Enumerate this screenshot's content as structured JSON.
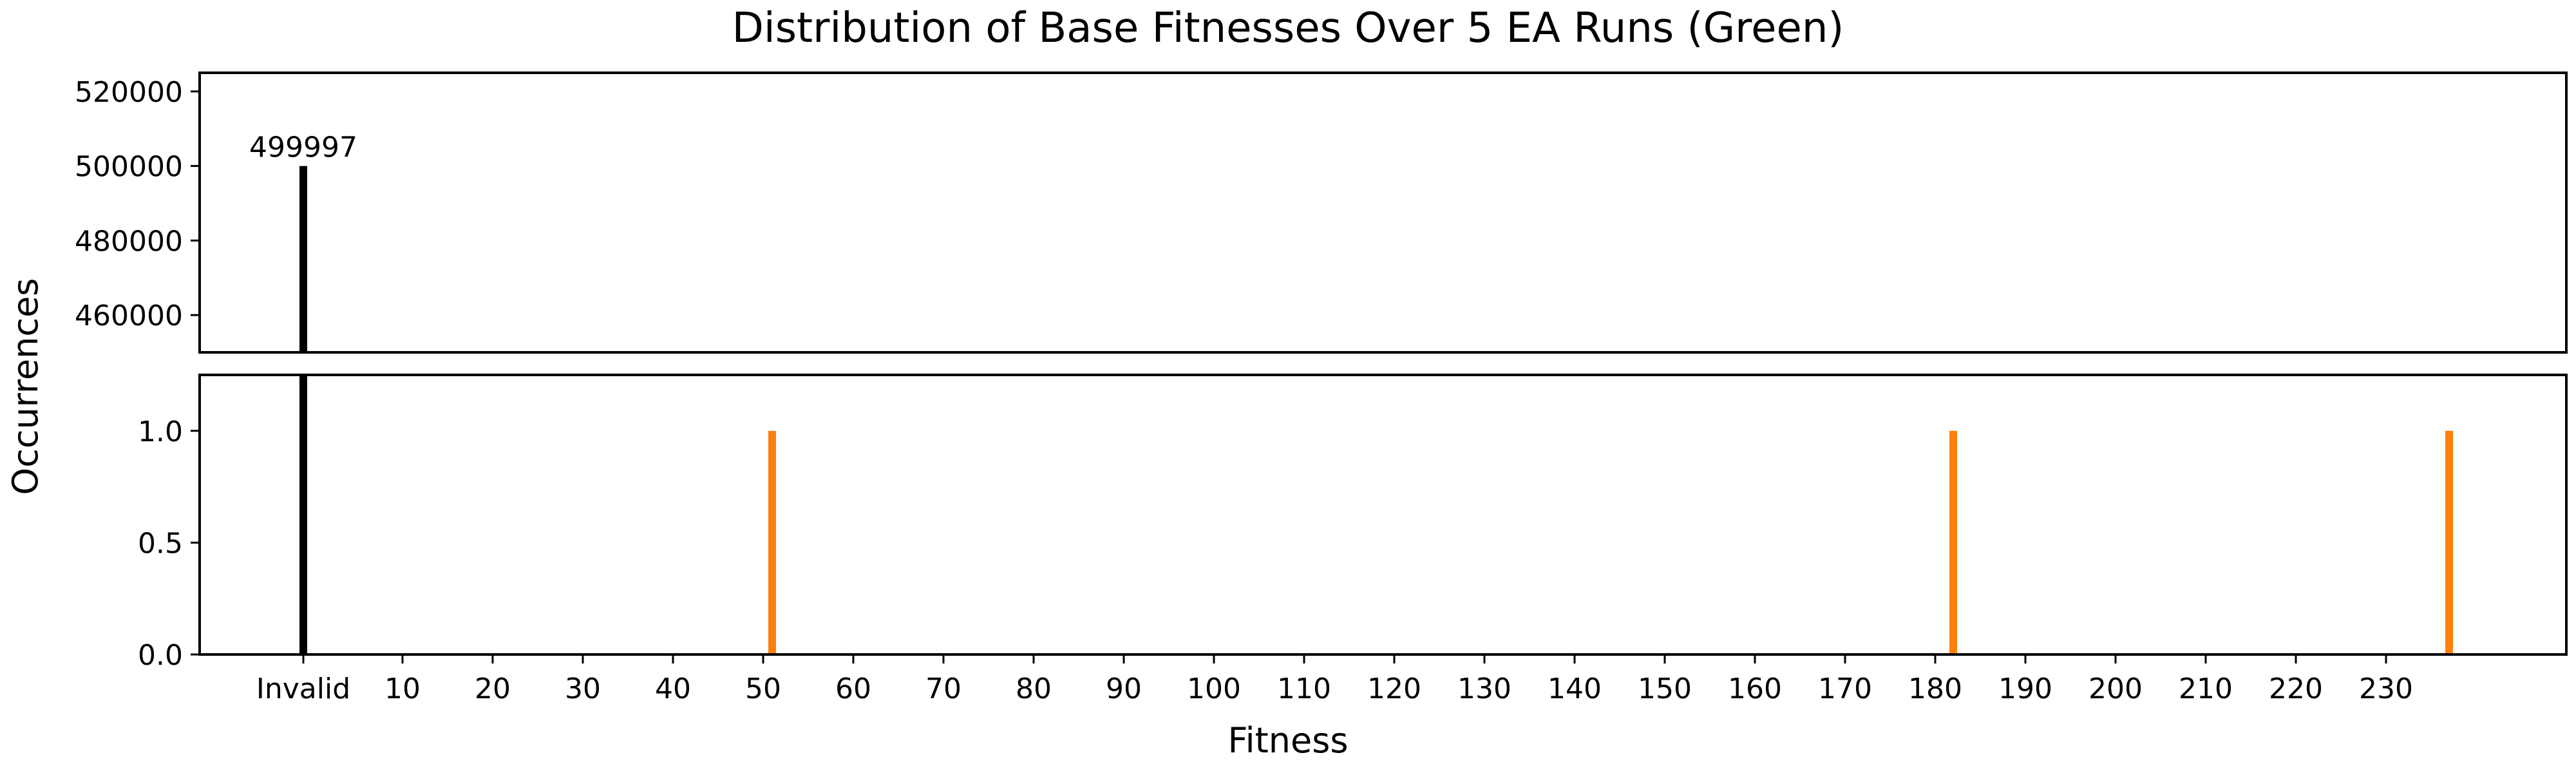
{
  "chart_data": {
    "type": "bar",
    "title": "Distribution of Base Fitnesses Over 5 EA Runs (Green)",
    "xlabel": "Fitness",
    "ylabel": "Occurrences",
    "broken_y_axis": true,
    "grid": false,
    "xlim": [
      -12.5,
      250
    ],
    "x_ticks": [
      {
        "value": -1,
        "label": "Invalid"
      },
      {
        "value": 10,
        "label": "10"
      },
      {
        "value": 20,
        "label": "20"
      },
      {
        "value": 30,
        "label": "30"
      },
      {
        "value": 40,
        "label": "40"
      },
      {
        "value": 50,
        "label": "50"
      },
      {
        "value": 60,
        "label": "60"
      },
      {
        "value": 70,
        "label": "70"
      },
      {
        "value": 80,
        "label": "80"
      },
      {
        "value": 90,
        "label": "90"
      },
      {
        "value": 100,
        "label": "100"
      },
      {
        "value": 110,
        "label": "110"
      },
      {
        "value": 120,
        "label": "120"
      },
      {
        "value": 130,
        "label": "130"
      },
      {
        "value": 140,
        "label": "140"
      },
      {
        "value": 150,
        "label": "150"
      },
      {
        "value": 160,
        "label": "160"
      },
      {
        "value": 170,
        "label": "170"
      },
      {
        "value": 180,
        "label": "180"
      },
      {
        "value": 190,
        "label": "190"
      },
      {
        "value": 200,
        "label": "200"
      },
      {
        "value": 210,
        "label": "210"
      },
      {
        "value": 220,
        "label": "220"
      },
      {
        "value": 230,
        "label": "230"
      }
    ],
    "panels": [
      {
        "id": "top",
        "ylim": [
          450000,
          525000
        ],
        "y_ticks": [
          {
            "value": 460000,
            "label": "460000"
          },
          {
            "value": 480000,
            "label": "480000"
          },
          {
            "value": 500000,
            "label": "500000"
          },
          {
            "value": 520000,
            "label": "520000"
          }
        ]
      },
      {
        "id": "bottom",
        "ylim": [
          0,
          1.25
        ],
        "y_ticks": [
          {
            "value": 0,
            "label": "0.0"
          },
          {
            "value": 0.5,
            "label": "0.5"
          },
          {
            "value": 1.0,
            "label": "1.0"
          }
        ]
      }
    ],
    "bars": [
      {
        "x": -1,
        "label": "Invalid",
        "value": 499997,
        "color": "#000000",
        "data_label": "499997"
      },
      {
        "x": 51,
        "value": 1,
        "color": "#ff7f0e"
      },
      {
        "x": 182,
        "value": 1,
        "color": "#ff7f0e"
      },
      {
        "x": 237,
        "value": 1,
        "color": "#ff7f0e"
      }
    ]
  }
}
